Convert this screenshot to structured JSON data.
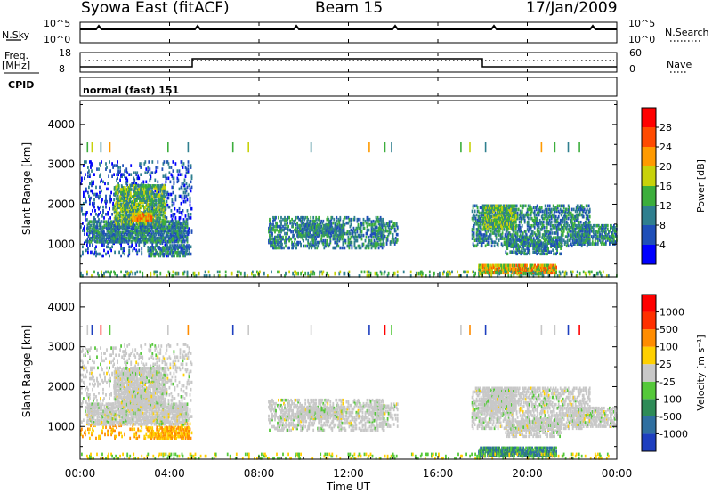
{
  "header": {
    "title": "Syowa East (fitACF)",
    "beam": "Beam 15",
    "date": "17/Jan/2009"
  },
  "noise_panel": {
    "left_label": "N.Sky",
    "right_label": "N.Search",
    "left_ticks": [
      "10^5",
      "10^0"
    ],
    "right_ticks": [
      "10^5",
      "10^0"
    ]
  },
  "freq_panel": {
    "left_label_1": "Freq.",
    "left_label_2": "[MHz]",
    "left_ticks": [
      "18",
      "8"
    ],
    "right_label": "Nave",
    "right_ticks": [
      "60",
      "0"
    ]
  },
  "cpid": {
    "label": "CPID",
    "value": "normal (fast) 151"
  },
  "chart_data": [
    {
      "type": "heatmap",
      "name": "power",
      "ylabel": "Slant Range [km]",
      "ylim": [
        180,
        4600
      ],
      "yticks": [
        "4000",
        "3000",
        "2000",
        "1000"
      ],
      "colorbar_label": "Power [dB]",
      "colorbar_ticks": [
        "28",
        "24",
        "20",
        "16",
        "12",
        "8",
        "4"
      ],
      "colors": [
        "#0000ff",
        "#1f4fb8",
        "#2f7f8f",
        "#3cae3c",
        "#c8d20a",
        "#ff9a00",
        "#ff4a00",
        "#ff0000"
      ]
    },
    {
      "type": "heatmap",
      "name": "velocity",
      "ylabel": "Slant Range [km]",
      "ylim": [
        180,
        4600
      ],
      "yticks": [
        "4000",
        "3000",
        "2000",
        "1000"
      ],
      "xlabel": "Time UT",
      "xticks": [
        "00:00",
        "04:00",
        "08:00",
        "12:00",
        "16:00",
        "20:00",
        "00:00"
      ],
      "xlim_hours": [
        0,
        24
      ],
      "colorbar_label": "Velocity [m s⁻¹]",
      "colorbar_ticks": [
        "1000",
        "500",
        "100",
        "25",
        "-25",
        "-100",
        "-500",
        "-1000"
      ],
      "colors": [
        "#1e3fbf",
        "#2f6fa0",
        "#2e8b57",
        "#55c83a",
        "#c8c8c8",
        "#ffd000",
        "#ff8c00",
        "#ff3000",
        "#ff0000"
      ]
    }
  ]
}
